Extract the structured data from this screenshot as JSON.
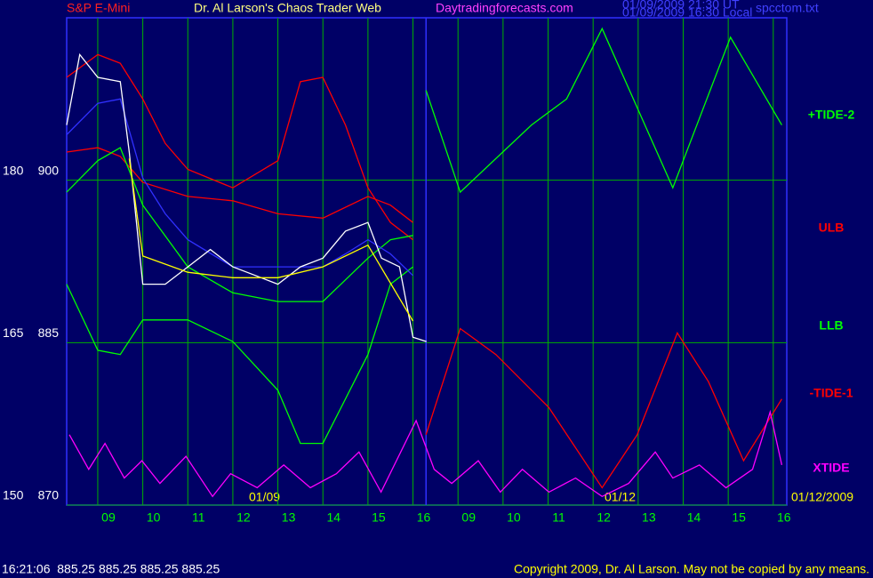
{
  "header": {
    "symbol": "S&P E-Mini",
    "title": "Dr. Al Larson's Chaos Trader Web",
    "site": "Daytradingforecasts.com",
    "time_ut": "01/09/2009 21:30 UT",
    "time_local": "01/09/2009 16:30 Local",
    "file": "spcctom.txt"
  },
  "footer": {
    "quote": "16:21:06  885.25 885.25 885.25 885.25",
    "copyright": "Copyright 2009, Dr. Al Larson. May not be copied by any means."
  },
  "chart_data": {
    "type": "line",
    "annotations": [
      "01/09",
      "01/12",
      "01/12/2009"
    ],
    "xlim": [
      8.31,
      24.3
    ],
    "xticks": [
      {
        "value": 9,
        "label": "09"
      },
      10,
      11,
      12,
      13,
      14,
      15,
      16,
      {
        "value": 17,
        "label": "09"
      },
      {
        "value": 18,
        "label": "10"
      },
      {
        "value": 19,
        "label": "11"
      },
      {
        "value": 20,
        "label": "12"
      },
      {
        "value": 21,
        "label": "13"
      },
      {
        "value": 22,
        "label": "14"
      },
      {
        "value": 23,
        "label": "15"
      },
      {
        "value": 24,
        "label": "16"
      }
    ],
    "ylim": [
      870,
      915
    ],
    "yticks": [
      870,
      885,
      900
    ],
    "y2lim": [
      150,
      195
    ],
    "y2ticks": [
      150,
      165,
      180
    ],
    "day_break": 16.29,
    "grid": true,
    "series": [
      {
        "name": "+TIDE-2",
        "color": "#00ff00",
        "x": [
          16.29,
          17.05,
          18.63,
          19.41,
          20.2,
          21.77,
          23.05,
          24.19
        ],
        "values": [
          908.3,
          898.9,
          905.1,
          907.5,
          914.0,
          899.3,
          913.2,
          905.1
        ]
      },
      {
        "name": "ULB",
        "color": "#ff0000",
        "x": [
          8.31,
          9,
          9.5,
          10,
          10.5,
          11,
          12,
          13,
          13.5,
          14,
          14.5,
          15,
          15.5,
          16
        ],
        "values": [
          909.5,
          911.6,
          910.8,
          907.5,
          903.4,
          901.0,
          899.3,
          901.8,
          909.1,
          909.5,
          905.1,
          899.3,
          896.1,
          894.5
        ]
      },
      {
        "name": "LLB",
        "color": "#00ff00",
        "x": [
          8.31,
          9,
          9.5,
          10,
          11,
          12,
          13,
          13.5,
          14,
          15,
          15.5,
          16
        ],
        "values": [
          890.4,
          884.3,
          883.9,
          887.1,
          887.1,
          885.1,
          880.6,
          875.7,
          875.7,
          883.9,
          890.4,
          892.0
        ]
      },
      {
        "name": "-TIDE-1",
        "color": "#ff0000",
        "x": [
          16.29,
          17.05,
          17.84,
          19.02,
          20.2,
          20.98,
          21.87,
          22.56,
          23.34,
          24.19
        ],
        "values": [
          876.5,
          886.3,
          883.9,
          879.0,
          871.6,
          876.5,
          885.9,
          881.4,
          874.1,
          879.8
        ]
      },
      {
        "name": "XTIDE",
        "color": "#ff00ff",
        "x": [
          8.37,
          8.8,
          9.16,
          9.59,
          9.98,
          10.38,
          10.96,
          11.55,
          11.95,
          12.54,
          13.13,
          13.72,
          14.3,
          14.8,
          15.29,
          16.07,
          16.47,
          16.86,
          17.45,
          17.94,
          18.43,
          19.02,
          19.61,
          20.2,
          20.79,
          21.38,
          21.77,
          22.36,
          22.95,
          23.54,
          23.93,
          24.19
        ],
        "values": [
          876.5,
          873.3,
          875.7,
          872.5,
          874.1,
          872.0,
          874.5,
          870.8,
          872.9,
          871.6,
          873.7,
          871.6,
          872.9,
          874.9,
          871.2,
          877.8,
          873.3,
          872.0,
          874.1,
          871.2,
          873.3,
          871.2,
          872.5,
          870.8,
          872.0,
          874.9,
          872.5,
          873.7,
          871.6,
          873.3,
          878.6,
          873.7
        ]
      },
      {
        "color": "#ff0000",
        "x": [
          8.31,
          9,
          9.5,
          10,
          11,
          12,
          13,
          14,
          15,
          15.5,
          16
        ],
        "values": [
          902.6,
          903.0,
          902.2,
          899.8,
          898.5,
          898.1,
          896.9,
          896.5,
          898.5,
          897.7,
          896.1
        ]
      },
      {
        "color": "#00ff00",
        "x": [
          8.31,
          9,
          9.5,
          10,
          11,
          12,
          13,
          14,
          15,
          15.5,
          16
        ],
        "values": [
          898.9,
          901.8,
          903.0,
          897.7,
          892.0,
          889.6,
          888.8,
          888.8,
          892.8,
          894.5,
          894.9
        ]
      },
      {
        "color": "#3030ff",
        "x": [
          8.31,
          9,
          9.5,
          10,
          10.5,
          11,
          12,
          13,
          14,
          14.5,
          15,
          15.5,
          16
        ],
        "values": [
          904.2,
          907.1,
          907.5,
          900.2,
          896.9,
          894.5,
          892.0,
          892.0,
          892.0,
          893.2,
          894.5,
          893.2,
          891.2
        ]
      },
      {
        "color": "#ffffff",
        "x": [
          8.31,
          8.6,
          9.0,
          9.5,
          9.7,
          10.0,
          10.5,
          11.0,
          11.5,
          12.0,
          12.5,
          13.0,
          13.5,
          14.0,
          14.5,
          15.0,
          15.3,
          15.7,
          16.0,
          16.3
        ],
        "values": [
          905.1,
          911.6,
          909.5,
          909.1,
          902.6,
          890.4,
          890.4,
          892.0,
          893.6,
          892.0,
          891.2,
          890.4,
          892.0,
          892.8,
          895.3,
          896.1,
          892.8,
          892.0,
          885.5,
          885.1
        ]
      },
      {
        "color": "#ffff00",
        "x": [
          9.7,
          10,
          11,
          12,
          13,
          14,
          15,
          16
        ],
        "values": [
          902,
          893,
          891.5,
          891,
          891,
          892,
          894,
          887
        ]
      }
    ]
  }
}
